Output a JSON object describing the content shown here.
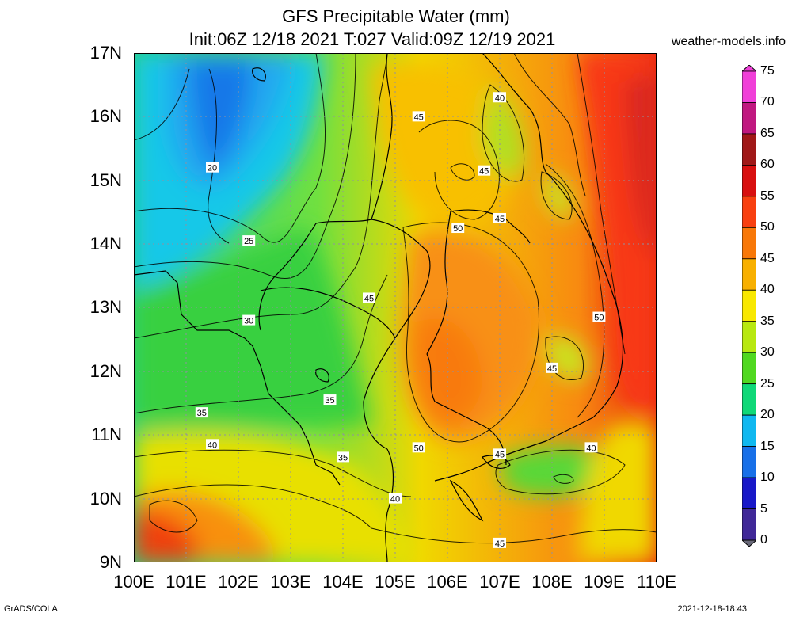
{
  "title": {
    "line1": "GFS Precipitable Water (mm)",
    "line2": "Init:06Z 12/18 2021 T:027 Valid:09Z 12/19 2021"
  },
  "site": "weather-models.info",
  "footer": {
    "left": "GrADS/COLA",
    "right": "2021-12-18-18:43"
  },
  "axes": {
    "lat_labels": [
      "17N",
      "16N",
      "15N",
      "14N",
      "13N",
      "12N",
      "11N",
      "10N",
      "9N"
    ],
    "lon_labels": [
      "100E",
      "101E",
      "102E",
      "103E",
      "104E",
      "105E",
      "106E",
      "107E",
      "108E",
      "109E",
      "110E"
    ]
  },
  "colorbar": {
    "labels": [
      "75",
      "70",
      "65",
      "60",
      "55",
      "50",
      "45",
      "40",
      "35",
      "30",
      "25",
      "20",
      "15",
      "10",
      "5",
      "0"
    ],
    "colors": [
      "#f040d8",
      "#c01880",
      "#a01818",
      "#d81010",
      "#f84010",
      "#f87808",
      "#f8b000",
      "#f8e800",
      "#b8e810",
      "#50d820",
      "#10d878",
      "#10b8f0",
      "#1870e8",
      "#1818c8",
      "#402898",
      "#686878"
    ]
  },
  "contour_labels": [
    {
      "text": "20",
      "lon": 101.5,
      "lat": 15.2
    },
    {
      "text": "25",
      "lon": 102.2,
      "lat": 14.05
    },
    {
      "text": "30",
      "lon": 102.2,
      "lat": 12.8
    },
    {
      "text": "35",
      "lon": 101.3,
      "lat": 11.35
    },
    {
      "text": "35",
      "lon": 103.75,
      "lat": 11.55
    },
    {
      "text": "35",
      "lon": 104.0,
      "lat": 10.65
    },
    {
      "text": "40",
      "lon": 101.5,
      "lat": 10.85
    },
    {
      "text": "40",
      "lon": 105.0,
      "lat": 10.0
    },
    {
      "text": "40",
      "lon": 107.0,
      "lat": 16.3
    },
    {
      "text": "40",
      "lon": 108.75,
      "lat": 10.8
    },
    {
      "text": "45",
      "lon": 105.45,
      "lat": 16.0
    },
    {
      "text": "45",
      "lon": 106.7,
      "lat": 15.15
    },
    {
      "text": "45",
      "lon": 107.0,
      "lat": 14.4
    },
    {
      "text": "45",
      "lon": 104.5,
      "lat": 13.15
    },
    {
      "text": "45",
      "lon": 108.0,
      "lat": 12.05
    },
    {
      "text": "45",
      "lon": 107.0,
      "lat": 10.7
    },
    {
      "text": "45",
      "lon": 107.0,
      "lat": 9.3
    },
    {
      "text": "50",
      "lon": 106.2,
      "lat": 14.25
    },
    {
      "text": "50",
      "lon": 108.9,
      "lat": 12.85
    },
    {
      "text": "50",
      "lon": 105.45,
      "lat": 10.8
    }
  ]
}
